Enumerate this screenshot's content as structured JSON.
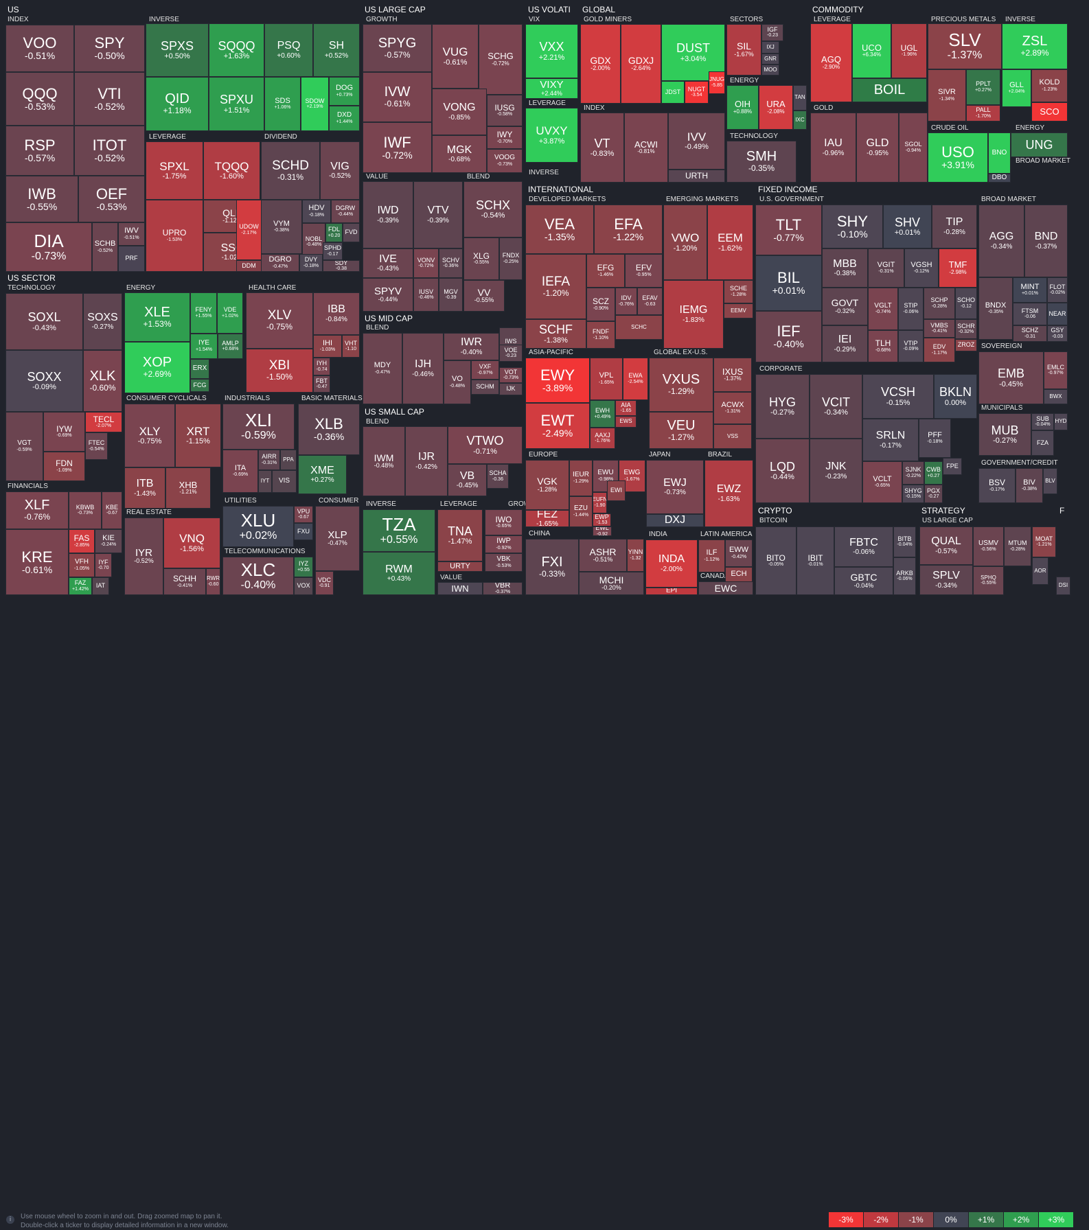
{
  "colors": {
    "neg3": "#f23536",
    "neg2": "#c0393f",
    "neg1": "#8b4349",
    "neg05": "#6b4450",
    "neg03": "#5e4450",
    "flat": "#414554",
    "pos05": "#35764a",
    "pos1": "#2f9e4f",
    "pos2": "#30cc5a",
    "bg": "#20232b"
  },
  "sections": [
    {
      "label": "US"
    },
    {
      "label": "US LARGE CAP"
    },
    {
      "label": "US VOLATI"
    },
    {
      "label": "GLOBAL"
    },
    {
      "label": "COMMODITY"
    },
    {
      "label": "US SECTOR"
    },
    {
      "label": "INTERNATIONAL"
    },
    {
      "label": "FIXED INCOME"
    },
    {
      "label": "US MID CAP"
    },
    {
      "label": "US SMALL CAP"
    },
    {
      "label": "CRYPTO"
    },
    {
      "label": "STRATEGY"
    },
    {
      "label": "F"
    }
  ],
  "subsections": [
    "INDEX",
    "INVERSE",
    "LEVERAGE",
    "DIVIDEND",
    "GROWTH",
    "VALUE",
    "BLEND",
    "VIX",
    "LEVERAGE",
    "INVERSE",
    "GOLD MINERS",
    "SECTORS",
    "ENERGY",
    "INDEX",
    "TECHNOLOGY",
    "LEVERAGE",
    "PRECIOUS METALS",
    "INVERSE",
    "GOLD",
    "CRUDE OIL",
    "ENERGY",
    "BROAD MARKET",
    "TECHNOLOGY",
    "ENERGY",
    "HEALTH CARE",
    "CONSUMER CYCLICALS",
    "INDUSTRIALS",
    "BASIC MATERIALS",
    "FINANCIALS",
    "REAL ESTATE",
    "UTILITIES",
    "CONSUMER",
    "TELECOMMUNICATIONS",
    "DEVELOPED MARKETS",
    "EMERGING MARKETS",
    "ASIA-PACIFIC",
    "GLOBAL EX-U.S.",
    "EUROPE",
    "JAPAN",
    "BRAZIL",
    "CHINA",
    "INDIA",
    "LATIN AMERICA",
    "CANADA",
    "U.S. GOVERNMENT",
    "BROAD MARKET",
    "SOVEREIGN",
    "CORPORATE",
    "MUNICIPALS",
    "GOVERNMENT/CREDIT",
    "BLEND",
    "INVERSE",
    "LEVERAGE",
    "GROWTH",
    "VALUE",
    "BLEND",
    "BITCOIN",
    "US LARGE CAP"
  ],
  "tiles": [
    {
      "t": "VOO",
      "p": "-0.51%"
    },
    {
      "t": "SPY",
      "p": "-0.50%"
    },
    {
      "t": "QQQ",
      "p": "-0.53%"
    },
    {
      "t": "VTI",
      "p": "-0.52%"
    },
    {
      "t": "RSP",
      "p": "-0.57%"
    },
    {
      "t": "ITOT",
      "p": "-0.52%"
    },
    {
      "t": "IWB",
      "p": "-0.55%"
    },
    {
      "t": "OEF",
      "p": "-0.53%"
    },
    {
      "t": "DIA",
      "p": "-0.73%"
    },
    {
      "t": "SCHB",
      "p": "-0.52%"
    },
    {
      "t": "IWV",
      "p": "-0.51%"
    },
    {
      "t": "PRF",
      "p": ""
    },
    {
      "t": "SPXS",
      "p": "+0.50%"
    },
    {
      "t": "SQQQ",
      "p": "+1.63%"
    },
    {
      "t": "PSQ",
      "p": "+0.60%"
    },
    {
      "t": "SH",
      "p": "+0.52%"
    },
    {
      "t": "QID",
      "p": "+1.18%"
    },
    {
      "t": "SPXU",
      "p": "+1.51%"
    },
    {
      "t": "SDS",
      "p": "+1.06%"
    },
    {
      "t": "SDOW",
      "p": "+2.19%"
    },
    {
      "t": "DOG",
      "p": "+0.73%"
    },
    {
      "t": "DXD",
      "p": "+1.44%"
    },
    {
      "t": "SPXL",
      "p": "-1.75%"
    },
    {
      "t": "TQQQ",
      "p": "-1.60%"
    },
    {
      "t": "QLD",
      "p": "-1.12%"
    },
    {
      "t": "UPRO",
      "p": "-1.53%"
    },
    {
      "t": "SSO",
      "p": "-1.02%"
    },
    {
      "t": "UDOW",
      "p": "-2.17%"
    },
    {
      "t": "DDM",
      "p": ""
    },
    {
      "t": "SCHD",
      "p": "-0.31%"
    },
    {
      "t": "VIG",
      "p": "-0.52%"
    },
    {
      "t": "VYM",
      "p": "-0.38%"
    },
    {
      "t": "HDV",
      "p": "-0.18%"
    },
    {
      "t": "DGRW",
      "p": "-0.44%"
    },
    {
      "t": "NOBL",
      "p": "-0.48%"
    },
    {
      "t": "FDL",
      "p": "+0.20"
    },
    {
      "t": "FVD",
      "p": ""
    },
    {
      "t": "DGRO",
      "p": "-0.47%"
    },
    {
      "t": "DVY",
      "p": "-0.18%"
    },
    {
      "t": "SPHD",
      "p": "-0.17"
    },
    {
      "t": "SDY",
      "p": "-0.38"
    },
    {
      "t": "SPYG",
      "p": "-0.57%"
    },
    {
      "t": "VUG",
      "p": "-0.61%"
    },
    {
      "t": "SCHG",
      "p": "-0.72%"
    },
    {
      "t": "IVW",
      "p": "-0.61%"
    },
    {
      "t": "VONG",
      "p": "-0.85%"
    },
    {
      "t": "IUSG",
      "p": "-0.58%"
    },
    {
      "t": "IWY",
      "p": "-0.70%"
    },
    {
      "t": "IWF",
      "p": "-0.72%"
    },
    {
      "t": "MGK",
      "p": "-0.68%"
    },
    {
      "t": "VOOG",
      "p": "-0.73%"
    },
    {
      "t": "IWD",
      "p": "-0.39%"
    },
    {
      "t": "VTV",
      "p": "-0.39%"
    },
    {
      "t": "IVE",
      "p": "-0.43%"
    },
    {
      "t": "VONV",
      "p": "-0.72%"
    },
    {
      "t": "SCHV",
      "p": "-0.36%"
    },
    {
      "t": "SPYV",
      "p": "-0.44%"
    },
    {
      "t": "IUSV",
      "p": "-0.46%"
    },
    {
      "t": "MGV",
      "p": "-0.39"
    },
    {
      "t": "SCHX",
      "p": "-0.54%"
    },
    {
      "t": "XLG",
      "p": "-0.55%"
    },
    {
      "t": "FNDX",
      "p": "-0.25%"
    },
    {
      "t": "VV",
      "p": "-0.55%"
    },
    {
      "t": "VXX",
      "p": "+2.21%"
    },
    {
      "t": "VIXY",
      "p": "+2.44%"
    },
    {
      "t": "UVXY",
      "p": "+3.87%"
    },
    {
      "t": "GDX",
      "p": "-2.00%"
    },
    {
      "t": "GDXJ",
      "p": "-2.64%"
    },
    {
      "t": "DUST",
      "p": "+3.04%"
    },
    {
      "t": "JDST",
      "p": ""
    },
    {
      "t": "NUGT",
      "p": "-3.54"
    },
    {
      "t": "JNUG",
      "p": "-5.85"
    },
    {
      "t": "SIL",
      "p": "-1.67%"
    },
    {
      "t": "IGF",
      "p": "-0.23"
    },
    {
      "t": "IXJ",
      "p": ""
    },
    {
      "t": "GNR",
      "p": ""
    },
    {
      "t": "MOO",
      "p": ""
    },
    {
      "t": "OIH",
      "p": "+0.88%"
    },
    {
      "t": "URA",
      "p": "-2.08%"
    },
    {
      "t": "TAN",
      "p": ""
    },
    {
      "t": "IXC",
      "p": ""
    },
    {
      "t": "VT",
      "p": "-0.83%"
    },
    {
      "t": "ACWI",
      "p": "-0.81%"
    },
    {
      "t": "IVV",
      "p": "-0.49%"
    },
    {
      "t": "URTH",
      "p": ""
    },
    {
      "t": "SMH",
      "p": "-0.35%"
    },
    {
      "t": "AGQ",
      "p": "-2.90%"
    },
    {
      "t": "UCO",
      "p": "+6.34%"
    },
    {
      "t": "UGL",
      "p": "-1.96%"
    },
    {
      "t": "BOIL",
      "p": ""
    },
    {
      "t": "SLV",
      "p": "-1.37%"
    },
    {
      "t": "SIVR",
      "p": "-1.34%"
    },
    {
      "t": "PPLT",
      "p": "+0.27%"
    },
    {
      "t": "PALL",
      "p": "-1.70%"
    },
    {
      "t": "ZSL",
      "p": "+2.89%"
    },
    {
      "t": "GLL",
      "p": "+2.04%"
    },
    {
      "t": "KOLD",
      "p": "-1.23%"
    },
    {
      "t": "SCO",
      "p": ""
    },
    {
      "t": "IAU",
      "p": "-0.96%"
    },
    {
      "t": "GLD",
      "p": "-0.95%"
    },
    {
      "t": "SGOL",
      "p": "-0.94%"
    },
    {
      "t": "USO",
      "p": "+3.91%"
    },
    {
      "t": "BNO",
      "p": ""
    },
    {
      "t": "DBO",
      "p": ""
    },
    {
      "t": "UNG",
      "p": ""
    },
    {
      "t": "SOXL",
      "p": "-0.43%"
    },
    {
      "t": "SOXS",
      "p": "-0.27%"
    },
    {
      "t": "SOXX",
      "p": "-0.09%"
    },
    {
      "t": "XLK",
      "p": "-0.60%"
    },
    {
      "t": "VGT",
      "p": "-0.59%"
    },
    {
      "t": "IYW",
      "p": "-0.69%"
    },
    {
      "t": "TECL",
      "p": "-2.07%"
    },
    {
      "t": "FTEC",
      "p": "-0.54%"
    },
    {
      "t": "FDN",
      "p": "-1.09%"
    },
    {
      "t": "XLE",
      "p": "+1.53%"
    },
    {
      "t": "FENY",
      "p": "+1.55%"
    },
    {
      "t": "VDE",
      "p": "+1.02%"
    },
    {
      "t": "IYE",
      "p": "+1.54%"
    },
    {
      "t": "AMLP",
      "p": "+0.68%"
    },
    {
      "t": "XOP",
      "p": "+2.69%"
    },
    {
      "t": "ERX",
      "p": ""
    },
    {
      "t": "FCG",
      "p": ""
    },
    {
      "t": "XLV",
      "p": "-0.75%"
    },
    {
      "t": "IBB",
      "p": "-0.84%"
    },
    {
      "t": "IHI",
      "p": "-1.03%"
    },
    {
      "t": "VHT",
      "p": "-1.10"
    },
    {
      "t": "XBI",
      "p": "-1.50%"
    },
    {
      "t": "IYH",
      "p": "-0.74"
    },
    {
      "t": "FBT",
      "p": "-0.47"
    },
    {
      "t": "XLY",
      "p": "-0.75%"
    },
    {
      "t": "XRT",
      "p": "-1.15%"
    },
    {
      "t": "ITB",
      "p": "-1.43%"
    },
    {
      "t": "XHB",
      "p": "-1.21%"
    },
    {
      "t": "XLI",
      "p": "-0.59%"
    },
    {
      "t": "ITA",
      "p": "-0.69%"
    },
    {
      "t": "AIRR",
      "p": "-0.31%"
    },
    {
      "t": "PPA",
      "p": ""
    },
    {
      "t": "IYT",
      "p": ""
    },
    {
      "t": "VIS",
      "p": ""
    },
    {
      "t": "XLB",
      "p": "-0.36%"
    },
    {
      "t": "XME",
      "p": "+0.27%"
    },
    {
      "t": "XLF",
      "p": "-0.76%"
    },
    {
      "t": "KBWB",
      "p": "-0.73%"
    },
    {
      "t": "KBE",
      "p": "-0.67"
    },
    {
      "t": "KRE",
      "p": "-0.61%"
    },
    {
      "t": "FAS",
      "p": "-2.85%"
    },
    {
      "t": "KIE",
      "p": "-0.24%"
    },
    {
      "t": "VFH",
      "p": "-1.05%"
    },
    {
      "t": "IYF",
      "p": "-0.70"
    },
    {
      "t": "FAZ",
      "p": "+1.42%"
    },
    {
      "t": "IAT",
      "p": ""
    },
    {
      "t": "IYR",
      "p": "-0.52%"
    },
    {
      "t": "VNQ",
      "p": "-1.56%"
    },
    {
      "t": "SCHH",
      "p": "-0.41%"
    },
    {
      "t": "RWR",
      "p": "-0.60"
    },
    {
      "t": "XLU",
      "p": "+0.02%"
    },
    {
      "t": "VPU",
      "p": "-0.67"
    },
    {
      "t": "FXU",
      "p": ""
    },
    {
      "t": "XLP",
      "p": "-0.47%"
    },
    {
      "t": "VDC",
      "p": "-0.91"
    },
    {
      "t": "XLC",
      "p": "-0.40%"
    },
    {
      "t": "IYZ",
      "p": "+0.55"
    },
    {
      "t": "VOX",
      "p": ""
    },
    {
      "t": "VEA",
      "p": "-1.35%"
    },
    {
      "t": "EFA",
      "p": "-1.22%"
    },
    {
      "t": "IEFA",
      "p": "-1.20%"
    },
    {
      "t": "EFG",
      "p": "-1.46%"
    },
    {
      "t": "EFV",
      "p": "-0.95%"
    },
    {
      "t": "SCHF",
      "p": "-1.38%"
    },
    {
      "t": "SCZ",
      "p": "-0.90%"
    },
    {
      "t": "IDV",
      "p": "-0.76%"
    },
    {
      "t": "EFAV",
      "p": "-0.63"
    },
    {
      "t": "SCHC",
      "p": ""
    },
    {
      "t": "FNDF",
      "p": "-1.10%"
    },
    {
      "t": "VWO",
      "p": "-1.20%"
    },
    {
      "t": "EEM",
      "p": "-1.62%"
    },
    {
      "t": "IEMG",
      "p": "-1.83%"
    },
    {
      "t": "SCHE",
      "p": "-1.28%"
    },
    {
      "t": "EEMV",
      "p": ""
    },
    {
      "t": "EWY",
      "p": "-3.89%"
    },
    {
      "t": "VPL",
      "p": "-1.65%"
    },
    {
      "t": "EWA",
      "p": "-2.54%"
    },
    {
      "t": "EWT",
      "p": "-2.49%"
    },
    {
      "t": "EWH",
      "p": "+0.49%"
    },
    {
      "t": "AIA",
      "p": "-1.65"
    },
    {
      "t": "EWS",
      "p": ""
    },
    {
      "t": "AAXJ",
      "p": "-1.76%"
    },
    {
      "t": "VXUS",
      "p": "-1.29%"
    },
    {
      "t": "IXUS",
      "p": "-1.37%"
    },
    {
      "t": "ACWX",
      "p": "-1.31%"
    },
    {
      "t": "VEU",
      "p": "-1.27%"
    },
    {
      "t": "VSS",
      "p": ""
    },
    {
      "t": "VGK",
      "p": "-1.28%"
    },
    {
      "t": "IEUR",
      "p": "-1.29%"
    },
    {
      "t": "EWU",
      "p": "-0.98%"
    },
    {
      "t": "EWG",
      "p": "-1.67%"
    },
    {
      "t": "EUFN",
      "p": "-1.90"
    },
    {
      "t": "EWI",
      "p": ""
    },
    {
      "t": "EWP",
      "p": "-1.53"
    },
    {
      "t": "EWL",
      "p": "-0.92"
    },
    {
      "t": "FEZ",
      "p": "-1.65%"
    },
    {
      "t": "EZU",
      "p": "-1.44%"
    },
    {
      "t": "EWJ",
      "p": "-0.73%"
    },
    {
      "t": "DXJ",
      "p": ""
    },
    {
      "t": "EWZ",
      "p": "-1.63%"
    },
    {
      "t": "FXI",
      "p": "-0.33%"
    },
    {
      "t": "ASHR",
      "p": "-0.51%"
    },
    {
      "t": "YINN",
      "p": "-1.32"
    },
    {
      "t": "MCHI",
      "p": "-0.20%"
    },
    {
      "t": "INDA",
      "p": "-2.00%"
    },
    {
      "t": "EPI",
      "p": ""
    },
    {
      "t": "ILF",
      "p": "-1.12%"
    },
    {
      "t": "EWW",
      "p": "-0.42%"
    },
    {
      "t": "ECH",
      "p": ""
    },
    {
      "t": "EWC",
      "p": ""
    },
    {
      "t": "TLT",
      "p": "-0.77%"
    },
    {
      "t": "SHY",
      "p": "-0.10%"
    },
    {
      "t": "SHV",
      "p": "+0.01%"
    },
    {
      "t": "TIP",
      "p": "-0.28%"
    },
    {
      "t": "BIL",
      "p": "+0.01%"
    },
    {
      "t": "MBB",
      "p": "-0.38%"
    },
    {
      "t": "VGIT",
      "p": "-0.31%"
    },
    {
      "t": "VGSH",
      "p": "-0.12%"
    },
    {
      "t": "TMF",
      "p": "-2.98%"
    },
    {
      "t": "IEF",
      "p": "-0.40%"
    },
    {
      "t": "GOVT",
      "p": "-0.32%"
    },
    {
      "t": "VGLT",
      "p": "-0.74%"
    },
    {
      "t": "STIP",
      "p": "-0.06%"
    },
    {
      "t": "SCHP",
      "p": "-0.28%"
    },
    {
      "t": "SCHO",
      "p": "-0.12"
    },
    {
      "t": "VMBS",
      "p": "-0.41%"
    },
    {
      "t": "SCHR",
      "p": "-0.32%"
    },
    {
      "t": "IEI",
      "p": "-0.29%"
    },
    {
      "t": "TLH",
      "p": "-0.68%"
    },
    {
      "t": "VTIP",
      "p": "-0.09%"
    },
    {
      "t": "EDV",
      "p": "-1.17%"
    },
    {
      "t": "ZROZ",
      "p": ""
    },
    {
      "t": "AGG",
      "p": "-0.34%"
    },
    {
      "t": "BND",
      "p": "-0.37%"
    },
    {
      "t": "BNDX",
      "p": "-0.35%"
    },
    {
      "t": "MINT",
      "p": "+0.01%"
    },
    {
      "t": "FLOT",
      "p": "-0.02%"
    },
    {
      "t": "FTSM",
      "p": "-0.06"
    },
    {
      "t": "NEAR",
      "p": ""
    },
    {
      "t": "SCHZ",
      "p": "-0.31"
    },
    {
      "t": "GSY",
      "p": "-0.03"
    },
    {
      "t": "EMB",
      "p": "-0.45%"
    },
    {
      "t": "EMLC",
      "p": "-0.97%"
    },
    {
      "t": "BWX",
      "p": ""
    },
    {
      "t": "HYG",
      "p": "-0.27%"
    },
    {
      "t": "VCIT",
      "p": "-0.34%"
    },
    {
      "t": "VCSH",
      "p": "-0.15%"
    },
    {
      "t": "BKLN",
      "p": "0.00%"
    },
    {
      "t": "SRLN",
      "p": "-0.17%"
    },
    {
      "t": "PFF",
      "p": "-0.18%"
    },
    {
      "t": "LQD",
      "p": "-0.44%"
    },
    {
      "t": "JNK",
      "p": "-0.23%"
    },
    {
      "t": "VCLT",
      "p": "-0.65%"
    },
    {
      "t": "SJNK",
      "p": "-0.22%"
    },
    {
      "t": "CWB",
      "p": "+0.27"
    },
    {
      "t": "FPE",
      "p": ""
    },
    {
      "t": "SHYG",
      "p": "-0.15%"
    },
    {
      "t": "PGX",
      "p": "-0.27"
    },
    {
      "t": "MUB",
      "p": "-0.27%"
    },
    {
      "t": "SUB",
      "p": "-0.04%"
    },
    {
      "t": "HYD",
      "p": ""
    },
    {
      "t": "FZA",
      "p": ""
    },
    {
      "t": "BSV",
      "p": "-0.17%"
    },
    {
      "t": "BIV",
      "p": "-0.38%"
    },
    {
      "t": "BLV",
      "p": ""
    },
    {
      "t": "MDY",
      "p": "-0.47%"
    },
    {
      "t": "IJH",
      "p": "-0.46%"
    },
    {
      "t": "IWR",
      "p": "-0.40%"
    },
    {
      "t": "VO",
      "p": "-0.48%"
    },
    {
      "t": "VXF",
      "p": "-0.97%"
    },
    {
      "t": "SCHM",
      "p": ""
    },
    {
      "t": "IWS",
      "p": "-0.29%"
    },
    {
      "t": "VOE",
      "p": "-0.23"
    },
    {
      "t": "VOT",
      "p": "-0.73%"
    },
    {
      "t": "IJK",
      "p": ""
    },
    {
      "t": "IWM",
      "p": "-0.48%"
    },
    {
      "t": "IJR",
      "p": "-0.42%"
    },
    {
      "t": "VTWO",
      "p": "-0.71%"
    },
    {
      "t": "VB",
      "p": "-0.45%"
    },
    {
      "t": "SCHA",
      "p": "-0.36"
    },
    {
      "t": "TZA",
      "p": "+0.55%"
    },
    {
      "t": "RWM",
      "p": "+0.43%"
    },
    {
      "t": "TNA",
      "p": "-1.47%"
    },
    {
      "t": "URTY",
      "p": ""
    },
    {
      "t": "IWO",
      "p": "-0.65%"
    },
    {
      "t": "IWP",
      "p": "-0.92%"
    },
    {
      "t": "VBK",
      "p": "-0.53%"
    },
    {
      "t": "IWN",
      "p": ""
    },
    {
      "t": "VBR",
      "p": "-0.37%"
    },
    {
      "t": "BITO",
      "p": "-0.05%"
    },
    {
      "t": "IBIT",
      "p": "-0.01%"
    },
    {
      "t": "FBTC",
      "p": "-0.06%"
    },
    {
      "t": "GBTC",
      "p": "-0.04%"
    },
    {
      "t": "BITB",
      "p": "-0.04%"
    },
    {
      "t": "ARKB",
      "p": "-0.06%"
    },
    {
      "t": "QUAL",
      "p": "-0.57%"
    },
    {
      "t": "USMV",
      "p": "-0.56%"
    },
    {
      "t": "MTUM",
      "p": "-0.28%"
    },
    {
      "t": "SPLV",
      "p": "-0.34%"
    },
    {
      "t": "SPHQ",
      "p": "-0.55%"
    },
    {
      "t": "MOAT",
      "p": "-1.21%"
    },
    {
      "t": "AOR",
      "p": ""
    },
    {
      "t": "DSI",
      "p": ""
    }
  ],
  "footer": {
    "hint_line1": "Use mouse wheel to zoom in and out. Drag zoomed map to pan it.",
    "hint_line2": "Double-click a ticker to display detailed information in a new window.",
    "info_icon": "info-icon",
    "legend": [
      {
        "label": "-3%",
        "color": "#f23536"
      },
      {
        "label": "-2%",
        "color": "#c0393f"
      },
      {
        "label": "-1%",
        "color": "#8b4349"
      },
      {
        "label": "0%",
        "color": "#414554"
      },
      {
        "label": "+1%",
        "color": "#35764a"
      },
      {
        "label": "+2%",
        "color": "#2f9e4f"
      },
      {
        "label": "+3%",
        "color": "#30cc5a"
      }
    ]
  }
}
